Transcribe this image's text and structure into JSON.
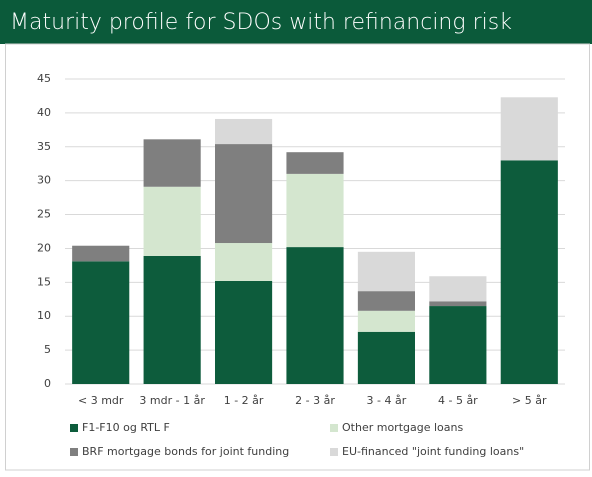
{
  "chart_data": {
    "type": "stacked_bar",
    "title": "Maturity profile for SDOs with refinancing risk",
    "categories": [
      "< 3 mdr",
      "3 mdr - 1 år",
      "1 - 2 år",
      "2 - 3 år",
      "3 - 4 år",
      "4 - 5 år",
      "> 5 år"
    ],
    "series": [
      {
        "name": "F1-F10 og RTL F",
        "color": "#0d5c3c",
        "values": [
          18.1,
          18.9,
          15.2,
          20.2,
          7.7,
          11.5,
          33.0
        ]
      },
      {
        "name": "Other mortgage loans",
        "color": "#d4e6cf",
        "values": [
          0,
          10.2,
          5.6,
          10.8,
          3.1,
          0,
          0
        ]
      },
      {
        "name": "BRF mortgage bonds for joint funding",
        "color": "#7f7f7f",
        "values": [
          2.3,
          7.0,
          14.6,
          3.2,
          2.9,
          0.7,
          0
        ]
      },
      {
        "name": "EU-financed \"joint funding loans\"",
        "color": "#d9d9d9",
        "values": [
          0,
          0,
          3.7,
          0,
          5.8,
          3.7,
          9.3
        ]
      }
    ],
    "ylim": [
      0,
      45
    ],
    "yticks": [
      0,
      5,
      10,
      15,
      20,
      25,
      30,
      35,
      40,
      45
    ],
    "grid": true
  }
}
